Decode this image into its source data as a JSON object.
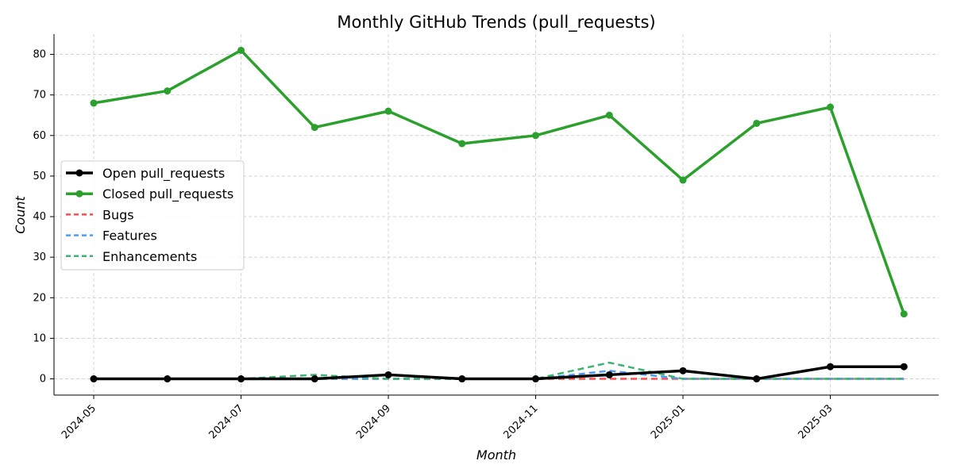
{
  "chart_data": {
    "type": "line",
    "title": "Monthly GitHub Trends (pull_requests)",
    "xlabel": "Month",
    "ylabel": "Count",
    "ylim": [
      -4,
      85
    ],
    "yticks": [
      0,
      10,
      20,
      30,
      40,
      50,
      60,
      70,
      80
    ],
    "x": [
      "2024-05",
      "2024-06",
      "2024-07",
      "2024-08",
      "2024-09",
      "2024-10",
      "2024-11",
      "2024-12",
      "2025-01",
      "2025-02",
      "2025-03",
      "2025-04"
    ],
    "xtick_labels": [
      "2024-05",
      "2024-07",
      "2024-09",
      "2024-11",
      "2025-01",
      "2025-03"
    ],
    "grid": true,
    "legend_position": "center-left",
    "series": [
      {
        "name": "Open pull_requests",
        "color": "#000000",
        "style": "solid",
        "markers": true,
        "values": [
          0,
          0,
          0,
          0,
          1,
          0,
          0,
          1,
          2,
          0,
          3,
          3
        ]
      },
      {
        "name": "Closed pull_requests",
        "color": "#2ca02c",
        "style": "solid",
        "markers": true,
        "values": [
          68,
          71,
          81,
          62,
          66,
          58,
          60,
          65,
          49,
          63,
          67,
          16
        ]
      },
      {
        "name": "Bugs",
        "color": "#ff4d4d",
        "style": "dashed",
        "markers": false,
        "values": [
          0,
          0,
          0,
          0,
          0,
          0,
          0,
          0,
          0,
          0,
          0,
          0
        ]
      },
      {
        "name": "Features",
        "color": "#4d9aff",
        "style": "dashed",
        "markers": false,
        "values": [
          0,
          0,
          0,
          0,
          0,
          0,
          0,
          2,
          0,
          0,
          0,
          0
        ]
      },
      {
        "name": "Enhancements",
        "color": "#3cb371",
        "style": "dashed",
        "markers": false,
        "values": [
          0,
          0,
          0,
          1,
          0,
          0,
          0,
          4,
          0,
          0,
          0,
          0
        ]
      }
    ]
  }
}
